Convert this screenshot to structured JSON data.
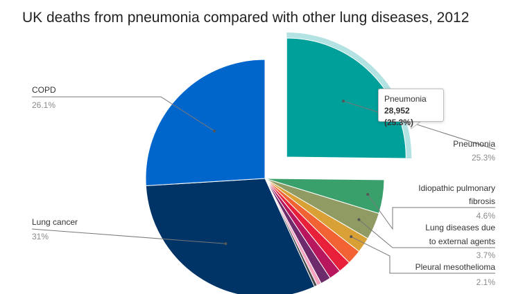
{
  "title": "UK deaths from pneumonia compared with other lung diseases, 2012",
  "tooltip": {
    "label": "Pneumonia",
    "value": "28,952 (25.3%)"
  },
  "chart_data": {
    "type": "pie",
    "title": "UK deaths from pneumonia compared with other lung diseases, 2012",
    "slices": [
      {
        "name": "Pneumonia",
        "value": 25.3,
        "label": "25.3%",
        "color": "#00a09a",
        "exploded": true,
        "hovered": true
      },
      {
        "name": "Idiopathic pulmonary fibrosis",
        "value": 4.6,
        "label": "4.6%",
        "color": "#3aa06b"
      },
      {
        "name": "Lung diseases due to external agents",
        "value": 3.7,
        "label": "3.7%",
        "color": "#8f9b62"
      },
      {
        "name": "Pleural mesothelioma",
        "value": 2.1,
        "label": "2.1%",
        "color": "#d9a135"
      },
      {
        "name": "",
        "value": 2.0,
        "label": "",
        "color": "#f26232"
      },
      {
        "name": "",
        "value": 1.7,
        "label": "",
        "color": "#e9203a"
      },
      {
        "name": "",
        "value": 1.6,
        "label": "",
        "color": "#b8175e"
      },
      {
        "name": "",
        "value": 1.4,
        "label": "",
        "color": "#6d2b6b"
      },
      {
        "name": "",
        "value": 0.6,
        "label": "",
        "color": "#f5a3c1"
      },
      {
        "name": "",
        "value": 0.4,
        "label": "",
        "color": "#4a4a4a"
      },
      {
        "name": "Lung cancer",
        "value": 31,
        "label": "31%",
        "color": "#003366"
      },
      {
        "name": "COPD",
        "value": 26.1,
        "label": "26.1%",
        "color": "#0066cc"
      }
    ]
  }
}
